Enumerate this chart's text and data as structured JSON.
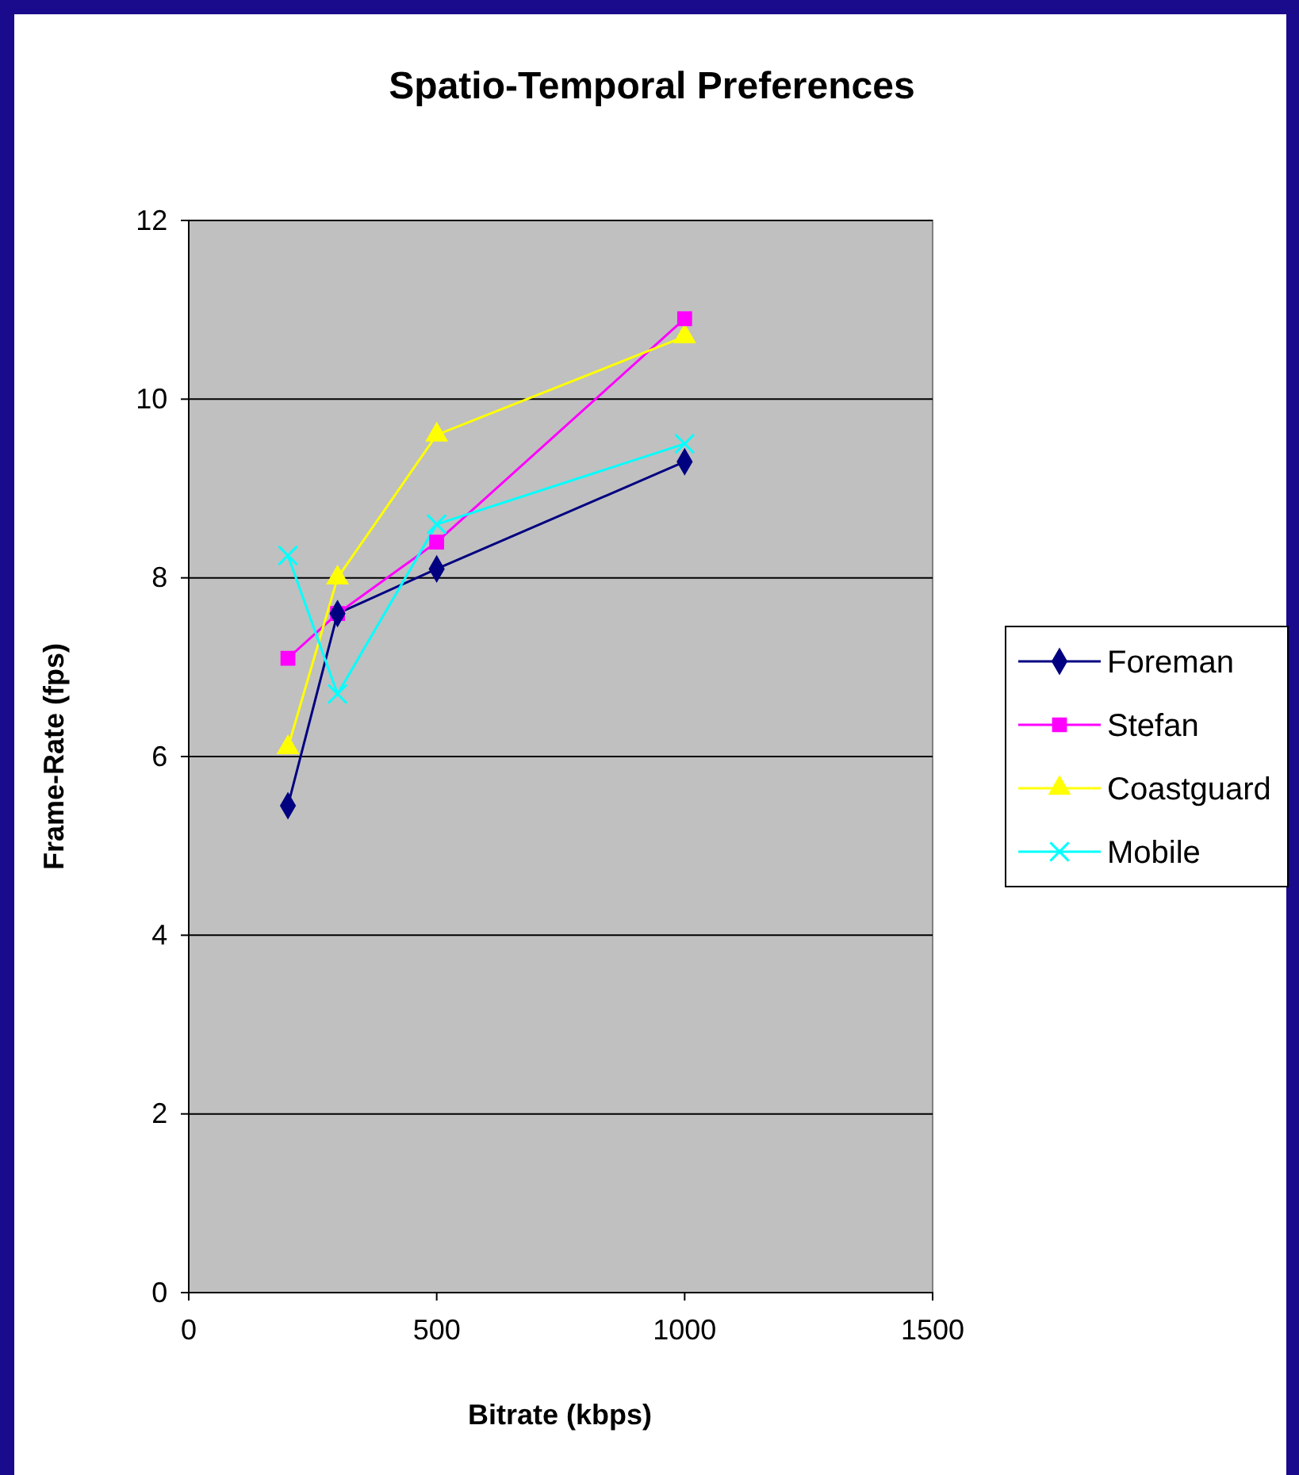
{
  "chart_data": {
    "type": "line",
    "title": "Spatio-Temporal Preferences",
    "xlabel": "Bitrate (kbps)",
    "ylabel": "Frame-Rate (fps)",
    "x": [
      200,
      300,
      500,
      1000
    ],
    "series": [
      {
        "name": "Foreman",
        "color": "#000080",
        "marker": "diamond",
        "values": [
          5.45,
          7.6,
          8.1,
          9.3
        ]
      },
      {
        "name": "Stefan",
        "color": "#ff00ff",
        "marker": "square",
        "values": [
          7.1,
          7.6,
          8.4,
          10.9
        ]
      },
      {
        "name": "Coastguard",
        "color": "#ffff00",
        "marker": "triangle",
        "values": [
          6.1,
          8.0,
          9.6,
          10.7
        ]
      },
      {
        "name": "Mobile",
        "color": "#00ffff",
        "marker": "cross",
        "values": [
          8.25,
          6.7,
          8.6,
          9.5
        ]
      }
    ],
    "xlim": [
      0,
      1500
    ],
    "xticks": [
      0,
      500,
      1000,
      1500
    ],
    "ylim": [
      0,
      12
    ],
    "yticks": [
      0,
      2,
      4,
      6,
      8,
      10,
      12
    ],
    "grid": "y",
    "legend": "right"
  }
}
